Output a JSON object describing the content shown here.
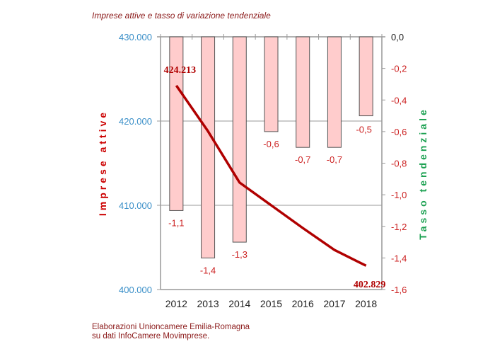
{
  "chart_data": {
    "type": "bar+line",
    "title": "Imprese attive e tasso di variazione tendenziale",
    "categories": [
      "2012",
      "2013",
      "2014",
      "2015",
      "2016",
      "2017",
      "2018"
    ],
    "series": [
      {
        "name": "Tasso tendenziale",
        "type": "bar",
        "axis": "right",
        "values": [
          -1.1,
          -1.4,
          -1.3,
          -0.6,
          -0.7,
          -0.7,
          -0.5
        ],
        "labels": [
          "-1,1",
          "-1,4",
          "-1,3",
          "-0,6",
          "-0,7",
          "-0,7",
          "-0,5"
        ],
        "color": "#ffcccc"
      },
      {
        "name": "Imprese attive",
        "type": "line",
        "axis": "left",
        "values": [
          424213,
          418800,
          412700,
          410000,
          407300,
          404700,
          402829
        ],
        "color": "#b00000"
      }
    ],
    "line_labels": {
      "first": "424.213",
      "last": "402.829"
    },
    "ylabel_left": "Imprese attive",
    "ylabel_right": "Tasso tendenziale",
    "ylim_left": [
      400000,
      430000
    ],
    "yticks_left": [
      "400.000",
      "410.000",
      "420.000",
      "430.000"
    ],
    "ylim_right": [
      -1.6,
      0
    ],
    "yticks_right": [
      "0,0",
      "-0,2",
      "-0,4",
      "-0,6",
      "-0,8",
      "-1,0",
      "-1,2",
      "-1,4",
      "-1,6"
    ],
    "grid": "horizontal at left-axis ticks",
    "colors": {
      "left_axis_ticks": "#3a8fc8",
      "right_axis_title": "#1aa050",
      "left_axis_title": "#cc0000",
      "labels": "#cc2222"
    }
  },
  "footer": {
    "line1": "Elaborazioni Unioncamere Emilia-Romagna",
    "line2": "su dati InfoCamere Movimprese."
  }
}
